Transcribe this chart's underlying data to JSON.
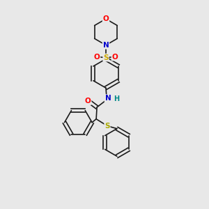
{
  "bg_color": "#e8e8e8",
  "bond_color": "#1a1a1a",
  "colors": {
    "O": "#ff0000",
    "N": "#0000cc",
    "S_sulfonyl": "#ccaa00",
    "S_thio": "#aaaa00",
    "H": "#008888",
    "C": "#1a1a1a"
  },
  "font_size_atom": 7.5,
  "line_width": 1.2,
  "fig_size": [
    3.0,
    3.0
  ],
  "dpi": 100
}
